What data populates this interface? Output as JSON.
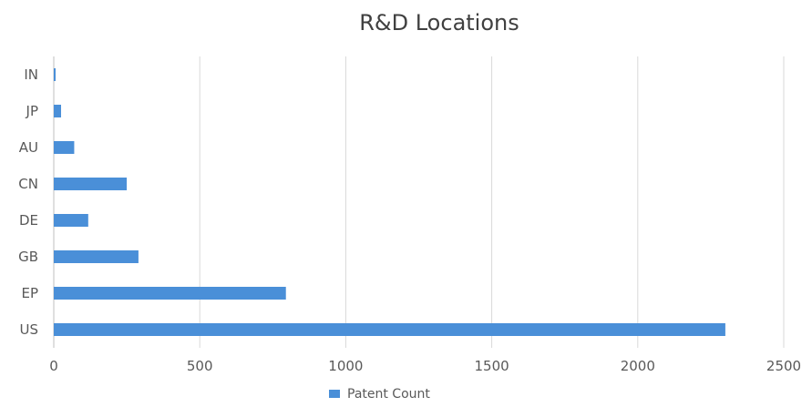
{
  "chart_data": {
    "type": "bar",
    "orientation": "horizontal",
    "title": "R&D Locations",
    "categories": [
      "IN",
      "JP",
      "AU",
      "CN",
      "DE",
      "GB",
      "EP",
      "US"
    ],
    "series": [
      {
        "name": "Patent Count",
        "values": [
          3,
          25,
          70,
          250,
          118,
          290,
          795,
          2300
        ]
      }
    ],
    "xlim": [
      0,
      2500
    ],
    "x_ticks": [
      "0",
      "500",
      "1000",
      "1500",
      "2000",
      "2500"
    ],
    "x_tick_values": [
      0,
      500,
      1000,
      1500,
      2000,
      2500
    ],
    "grid": "vertical",
    "legend_position": "bottom",
    "colors": {
      "bar": "#4a8fd8",
      "grid": "#d9d9d9",
      "text": "#595959",
      "axis": "#bfbfbf"
    }
  }
}
